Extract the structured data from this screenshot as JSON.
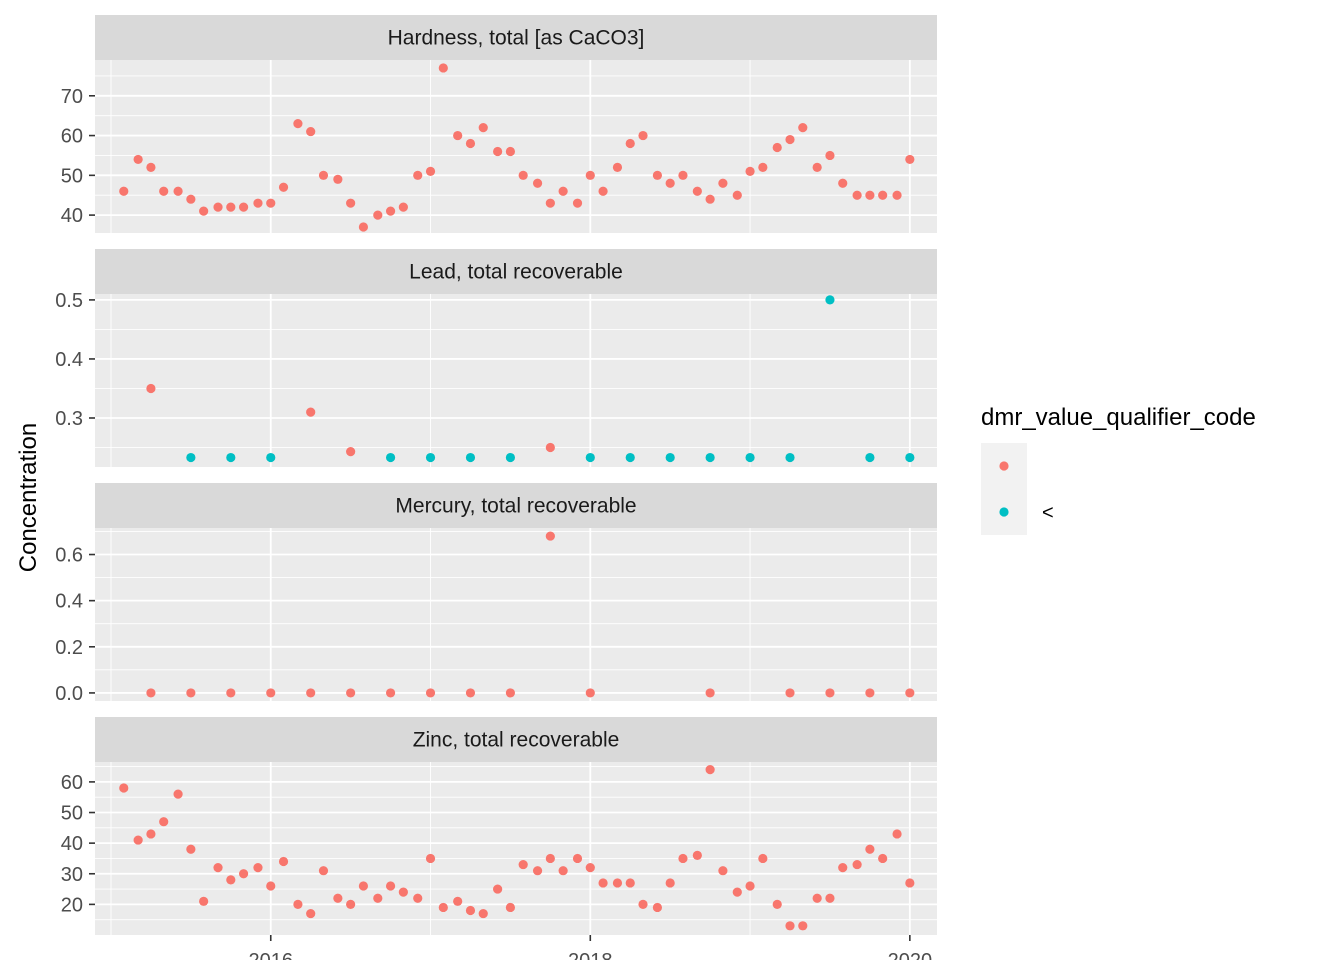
{
  "chart_data": {
    "type": "scatter",
    "facet_layout": "vertical, shared x axis, free y scales",
    "ylabel": "Concentration",
    "xlabel": "",
    "x_axis": {
      "ticks": [
        2016,
        2018,
        2020
      ],
      "range": [
        2014.9,
        2020.17
      ]
    },
    "legend": {
      "title": "dmr_value_qualifier_code",
      "placement": "right",
      "entries": [
        {
          "key": "none",
          "label": "",
          "color": "#F8766D"
        },
        {
          "key": "lt",
          "label": "<",
          "color": "#00BFC4"
        }
      ]
    },
    "panels": [
      {
        "title": "Hardness, total [as CaCO3]",
        "ylim": [
          35.5,
          79.0
        ],
        "yticks": [
          40,
          50,
          60,
          70
        ],
        "points": [
          [
            2015.08,
            46,
            "none"
          ],
          [
            2015.17,
            54,
            "none"
          ],
          [
            2015.25,
            52,
            "none"
          ],
          [
            2015.33,
            46,
            "none"
          ],
          [
            2015.42,
            46,
            "none"
          ],
          [
            2015.5,
            44,
            "none"
          ],
          [
            2015.58,
            41,
            "none"
          ],
          [
            2015.67,
            42,
            "none"
          ],
          [
            2015.75,
            42,
            "none"
          ],
          [
            2015.83,
            42,
            "none"
          ],
          [
            2015.92,
            43,
            "none"
          ],
          [
            2016.0,
            43,
            "none"
          ],
          [
            2016.08,
            47,
            "none"
          ],
          [
            2016.17,
            63,
            "none"
          ],
          [
            2016.25,
            61,
            "none"
          ],
          [
            2016.33,
            50,
            "none"
          ],
          [
            2016.42,
            49,
            "none"
          ],
          [
            2016.5,
            43,
            "none"
          ],
          [
            2016.58,
            37,
            "none"
          ],
          [
            2016.67,
            40,
            "none"
          ],
          [
            2016.75,
            41,
            "none"
          ],
          [
            2016.83,
            42,
            "none"
          ],
          [
            2016.92,
            50,
            "none"
          ],
          [
            2017.0,
            51,
            "none"
          ],
          [
            2017.08,
            77,
            "none"
          ],
          [
            2017.17,
            60,
            "none"
          ],
          [
            2017.25,
            58,
            "none"
          ],
          [
            2017.33,
            62,
            "none"
          ],
          [
            2017.42,
            56,
            "none"
          ],
          [
            2017.5,
            56,
            "none"
          ],
          [
            2017.58,
            50,
            "none"
          ],
          [
            2017.67,
            48,
            "none"
          ],
          [
            2017.75,
            43,
            "none"
          ],
          [
            2017.83,
            46,
            "none"
          ],
          [
            2017.92,
            43,
            "none"
          ],
          [
            2018.0,
            50,
            "none"
          ],
          [
            2018.08,
            46,
            "none"
          ],
          [
            2018.17,
            52,
            "none"
          ],
          [
            2018.25,
            58,
            "none"
          ],
          [
            2018.33,
            60,
            "none"
          ],
          [
            2018.42,
            50,
            "none"
          ],
          [
            2018.5,
            48,
            "none"
          ],
          [
            2018.58,
            50,
            "none"
          ],
          [
            2018.67,
            46,
            "none"
          ],
          [
            2018.75,
            44,
            "none"
          ],
          [
            2018.83,
            48,
            "none"
          ],
          [
            2018.92,
            45,
            "none"
          ],
          [
            2019.0,
            51,
            "none"
          ],
          [
            2019.08,
            52,
            "none"
          ],
          [
            2019.17,
            57,
            "none"
          ],
          [
            2019.25,
            59,
            "none"
          ],
          [
            2019.33,
            62,
            "none"
          ],
          [
            2019.42,
            52,
            "none"
          ],
          [
            2019.5,
            55,
            "none"
          ],
          [
            2019.58,
            48,
            "none"
          ],
          [
            2019.67,
            45,
            "none"
          ],
          [
            2019.75,
            45,
            "none"
          ],
          [
            2019.83,
            45,
            "none"
          ],
          [
            2019.92,
            45,
            "none"
          ],
          [
            2020.0,
            54,
            "none"
          ]
        ]
      },
      {
        "title": "Lead, total recoverable",
        "ylim": [
          0.217,
          0.51
        ],
        "yticks": [
          0.3,
          0.4,
          0.5
        ],
        "points": [
          [
            2015.25,
            0.35,
            "none"
          ],
          [
            2015.5,
            0.233,
            "lt"
          ],
          [
            2015.75,
            0.233,
            "lt"
          ],
          [
            2016.0,
            0.233,
            "lt"
          ],
          [
            2016.25,
            0.31,
            "none"
          ],
          [
            2016.5,
            0.243,
            "none"
          ],
          [
            2016.75,
            0.233,
            "lt"
          ],
          [
            2017.0,
            0.233,
            "lt"
          ],
          [
            2017.25,
            0.233,
            "lt"
          ],
          [
            2017.5,
            0.233,
            "lt"
          ],
          [
            2017.75,
            0.25,
            "none"
          ],
          [
            2018.0,
            0.233,
            "lt"
          ],
          [
            2018.25,
            0.233,
            "lt"
          ],
          [
            2018.5,
            0.233,
            "lt"
          ],
          [
            2018.75,
            0.233,
            "lt"
          ],
          [
            2019.0,
            0.233,
            "lt"
          ],
          [
            2019.25,
            0.233,
            "lt"
          ],
          [
            2019.5,
            0.5,
            "lt"
          ],
          [
            2019.75,
            0.233,
            "lt"
          ],
          [
            2020.0,
            0.233,
            "lt"
          ]
        ]
      },
      {
        "title": "Mercury, total recoverable",
        "ylim": [
          -0.035,
          0.715
        ],
        "yticks": [
          0.0,
          0.2,
          0.4,
          0.6
        ],
        "points": [
          [
            2015.25,
            0,
            "none"
          ],
          [
            2015.5,
            0,
            "none"
          ],
          [
            2015.75,
            0,
            "none"
          ],
          [
            2016.0,
            0,
            "none"
          ],
          [
            2016.25,
            0,
            "none"
          ],
          [
            2016.5,
            0,
            "none"
          ],
          [
            2016.75,
            0,
            "none"
          ],
          [
            2017.0,
            0,
            "none"
          ],
          [
            2017.25,
            0,
            "none"
          ],
          [
            2017.5,
            0,
            "none"
          ],
          [
            2017.75,
            0.68,
            "none"
          ],
          [
            2018.0,
            0,
            "none"
          ],
          [
            2018.75,
            0,
            "none"
          ],
          [
            2019.25,
            0,
            "none"
          ],
          [
            2019.5,
            0,
            "none"
          ],
          [
            2019.75,
            0,
            "none"
          ],
          [
            2020.0,
            0,
            "none"
          ]
        ]
      },
      {
        "title": "Zinc, total recoverable",
        "ylim": [
          10.0,
          66.5
        ],
        "yticks": [
          20,
          30,
          40,
          50,
          60
        ],
        "points": [
          [
            2015.08,
            58,
            "none"
          ],
          [
            2015.17,
            41,
            "none"
          ],
          [
            2015.25,
            43,
            "none"
          ],
          [
            2015.33,
            47,
            "none"
          ],
          [
            2015.42,
            56,
            "none"
          ],
          [
            2015.5,
            38,
            "none"
          ],
          [
            2015.58,
            21,
            "none"
          ],
          [
            2015.67,
            32,
            "none"
          ],
          [
            2015.75,
            28,
            "none"
          ],
          [
            2015.83,
            30,
            "none"
          ],
          [
            2015.92,
            32,
            "none"
          ],
          [
            2016.0,
            26,
            "none"
          ],
          [
            2016.08,
            34,
            "none"
          ],
          [
            2016.17,
            20,
            "none"
          ],
          [
            2016.25,
            17,
            "none"
          ],
          [
            2016.33,
            31,
            "none"
          ],
          [
            2016.42,
            22,
            "none"
          ],
          [
            2016.5,
            20,
            "none"
          ],
          [
            2016.58,
            26,
            "none"
          ],
          [
            2016.67,
            22,
            "none"
          ],
          [
            2016.75,
            26,
            "none"
          ],
          [
            2016.83,
            24,
            "none"
          ],
          [
            2016.92,
            22,
            "none"
          ],
          [
            2017.0,
            35,
            "none"
          ],
          [
            2017.08,
            19,
            "none"
          ],
          [
            2017.17,
            21,
            "none"
          ],
          [
            2017.25,
            18,
            "none"
          ],
          [
            2017.33,
            17,
            "none"
          ],
          [
            2017.42,
            25,
            "none"
          ],
          [
            2017.5,
            19,
            "none"
          ],
          [
            2017.58,
            33,
            "none"
          ],
          [
            2017.67,
            31,
            "none"
          ],
          [
            2017.75,
            35,
            "none"
          ],
          [
            2017.83,
            31,
            "none"
          ],
          [
            2017.92,
            35,
            "none"
          ],
          [
            2018.0,
            32,
            "none"
          ],
          [
            2018.08,
            27,
            "none"
          ],
          [
            2018.17,
            27,
            "none"
          ],
          [
            2018.25,
            27,
            "none"
          ],
          [
            2018.33,
            20,
            "none"
          ],
          [
            2018.42,
            19,
            "none"
          ],
          [
            2018.5,
            27,
            "none"
          ],
          [
            2018.58,
            35,
            "none"
          ],
          [
            2018.67,
            36,
            "none"
          ],
          [
            2018.75,
            64,
            "none"
          ],
          [
            2018.83,
            31,
            "none"
          ],
          [
            2018.92,
            24,
            "none"
          ],
          [
            2019.0,
            26,
            "none"
          ],
          [
            2019.08,
            35,
            "none"
          ],
          [
            2019.17,
            20,
            "none"
          ],
          [
            2019.25,
            13,
            "none"
          ],
          [
            2019.33,
            13,
            "none"
          ],
          [
            2019.42,
            22,
            "none"
          ],
          [
            2019.5,
            22,
            "none"
          ],
          [
            2019.58,
            32,
            "none"
          ],
          [
            2019.67,
            33,
            "none"
          ],
          [
            2019.75,
            38,
            "none"
          ],
          [
            2019.83,
            35,
            "none"
          ],
          [
            2019.92,
            43,
            "none"
          ],
          [
            2020.0,
            27,
            "none"
          ]
        ]
      }
    ]
  }
}
